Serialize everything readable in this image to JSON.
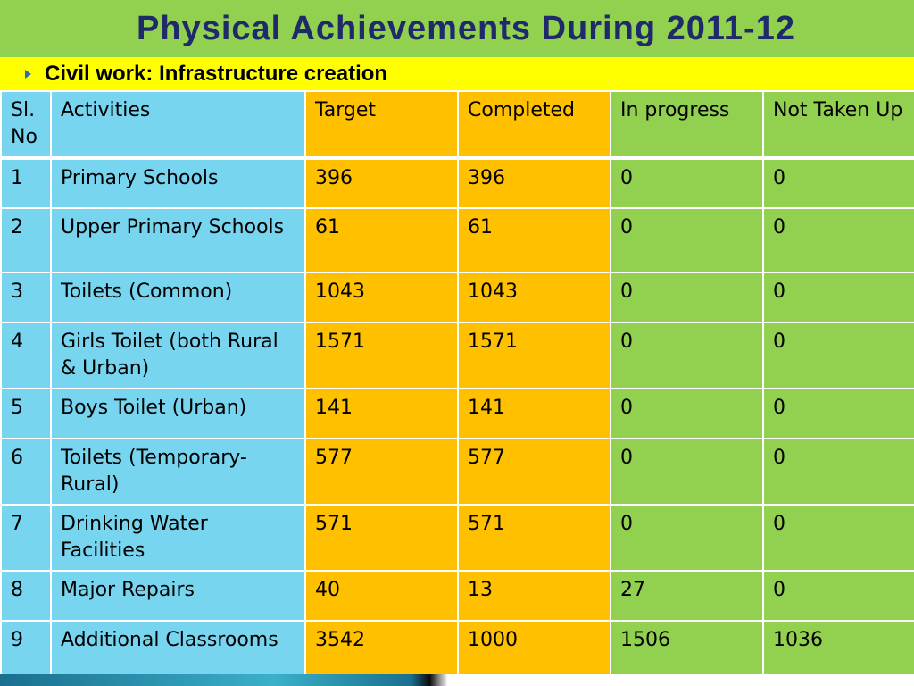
{
  "header": {
    "title": "Physical Achievements During 2011-12"
  },
  "subheader": {
    "bullet_icon": "triangle-bullet-icon",
    "text": "Civil work: Infrastructure creation"
  },
  "table": {
    "columns": [
      "Sl. No",
      "Activities",
      "Target",
      "Completed",
      "In progress",
      "Not Taken Up"
    ],
    "rows": [
      [
        "1",
        "Primary Schools",
        "396",
        "396",
        "0",
        "0"
      ],
      [
        "2",
        "Upper Primary Schools",
        "61",
        "61",
        "0",
        "0"
      ],
      [
        "3",
        "Toilets (Common)",
        "1043",
        "1043",
        "0",
        "0"
      ],
      [
        "4",
        "Girls Toilet (both Rural & Urban)",
        "1571",
        "1571",
        "0",
        "0"
      ],
      [
        "5",
        "Boys Toilet (Urban)",
        "141",
        "141",
        "0",
        "0"
      ],
      [
        "6",
        "Toilets (Temporary-Rural)",
        "577",
        "577",
        "0",
        "0"
      ],
      [
        "7",
        "Drinking Water Facilities",
        "571",
        "571",
        "0",
        "0"
      ],
      [
        "8",
        "Major Repairs",
        "40",
        "13",
        "27",
        "0"
      ],
      [
        "9",
        "Additional Classrooms",
        "3542",
        "1000",
        "1506",
        "1036"
      ]
    ]
  },
  "colors": {
    "title_bg": "#92d050",
    "title_text": "#1f2a6b",
    "subtitle_bg": "#ffff00",
    "blue_column": "#77d5ef",
    "orange_column": "#ffc000",
    "green_column": "#92d050"
  }
}
